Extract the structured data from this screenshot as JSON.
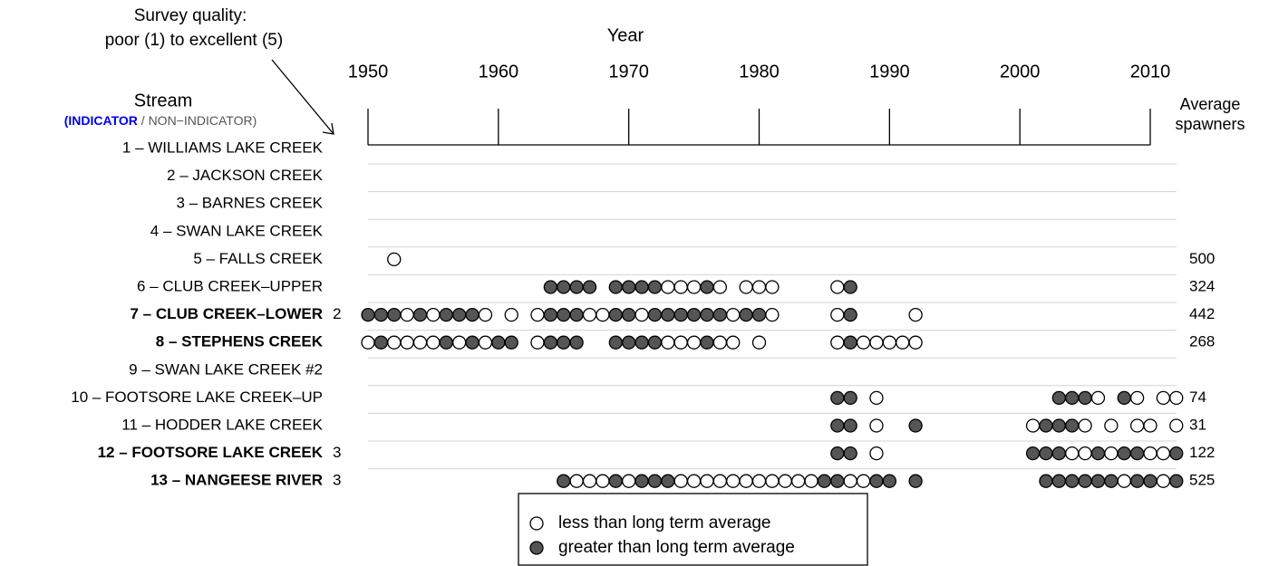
{
  "chart_data": {
    "type": "dot",
    "x_label": "Year",
    "annotation": [
      "Survey quality:",
      "poor (1) to excellent (5)"
    ],
    "stream_header": "Stream",
    "indicator_label": "(INDICATOR",
    "non_indicator_label": "/ NON−INDICATOR)",
    "average_header": [
      "Average",
      "spawners"
    ],
    "xlim": [
      1950,
      2010
    ],
    "xticks": [
      1950,
      1960,
      1970,
      1980,
      1990,
      2000,
      2010
    ],
    "indicator_color": "#0000ee",
    "other_color": "#555555",
    "above_color": "#555555",
    "below_color": "#ffffff",
    "legend": [
      {
        "label": "less than long term average",
        "above": false
      },
      {
        "label": "greater than long term average",
        "above": true
      }
    ],
    "streams": [
      {
        "name": "1 – WILLIAMS LAKE CREEK",
        "indicator": false,
        "quality": null,
        "average": null,
        "years": [],
        "above": []
      },
      {
        "name": "2 – JACKSON CREEK",
        "indicator": false,
        "quality": null,
        "average": null,
        "years": [],
        "above": []
      },
      {
        "name": "3 – BARNES CREEK",
        "indicator": false,
        "quality": null,
        "average": null,
        "years": [],
        "above": []
      },
      {
        "name": "4 – SWAN LAKE CREEK",
        "indicator": false,
        "quality": null,
        "average": null,
        "years": [],
        "above": []
      },
      {
        "name": "5 – FALLS CREEK",
        "indicator": false,
        "quality": null,
        "average": 500,
        "years": [
          1952
        ],
        "above": [
          false
        ]
      },
      {
        "name": "6 – CLUB CREEK–UPPER",
        "indicator": false,
        "quality": null,
        "average": 324,
        "years": [
          1964,
          1965,
          1966,
          1967,
          1969,
          1970,
          1971,
          1972,
          1973,
          1974,
          1975,
          1976,
          1977,
          1979,
          1980,
          1981,
          1986,
          1987
        ],
        "above": [
          true,
          true,
          true,
          true,
          true,
          true,
          true,
          true,
          false,
          false,
          false,
          true,
          false,
          false,
          false,
          false,
          false,
          true
        ]
      },
      {
        "name": "7 – CLUB CREEK–LOWER",
        "indicator": true,
        "quality": 2,
        "average": 442,
        "years": [
          1950,
          1951,
          1952,
          1953,
          1954,
          1955,
          1956,
          1957,
          1958,
          1959,
          1961,
          1963,
          1964,
          1965,
          1966,
          1967,
          1968,
          1969,
          1970,
          1971,
          1972,
          1973,
          1974,
          1975,
          1976,
          1977,
          1978,
          1979,
          1980,
          1981,
          1986,
          1987,
          1992
        ],
        "above": [
          true,
          true,
          true,
          false,
          true,
          false,
          true,
          true,
          true,
          false,
          false,
          false,
          true,
          true,
          true,
          false,
          false,
          true,
          true,
          false,
          true,
          true,
          true,
          true,
          true,
          true,
          false,
          true,
          true,
          false,
          false,
          true,
          false
        ]
      },
      {
        "name": "8 – STEPHENS CREEK",
        "indicator": true,
        "quality": null,
        "average": 268,
        "years": [
          1950,
          1951,
          1952,
          1953,
          1954,
          1955,
          1956,
          1957,
          1958,
          1959,
          1960,
          1961,
          1963,
          1964,
          1965,
          1966,
          1969,
          1970,
          1971,
          1972,
          1973,
          1974,
          1975,
          1976,
          1977,
          1978,
          1980,
          1986,
          1987,
          1988,
          1989,
          1990,
          1991,
          1992
        ],
        "above": [
          false,
          true,
          false,
          false,
          false,
          false,
          true,
          false,
          true,
          false,
          true,
          true,
          false,
          true,
          true,
          true,
          true,
          true,
          true,
          true,
          false,
          false,
          false,
          true,
          false,
          false,
          false,
          false,
          true,
          false,
          false,
          false,
          false,
          false
        ]
      },
      {
        "name": "9 – SWAN LAKE CREEK #2",
        "indicator": false,
        "quality": null,
        "average": null,
        "years": [],
        "above": []
      },
      {
        "name": "10 – FOOTSORE LAKE CREEK–UP",
        "indicator": false,
        "quality": null,
        "average": 74,
        "years": [
          1986,
          1987,
          1989,
          2003,
          2004,
          2005,
          2006,
          2008,
          2009,
          2011,
          2012
        ],
        "above": [
          true,
          true,
          false,
          true,
          true,
          true,
          false,
          true,
          false,
          false,
          false
        ]
      },
      {
        "name": "11 – HODDER LAKE CREEK",
        "indicator": false,
        "quality": null,
        "average": 31,
        "years": [
          1986,
          1987,
          1989,
          1992,
          2001,
          2002,
          2003,
          2004,
          2005,
          2007,
          2009,
          2010,
          2012
        ],
        "above": [
          true,
          true,
          false,
          true,
          false,
          true,
          true,
          true,
          false,
          false,
          false,
          false,
          false
        ]
      },
      {
        "name": "12 – FOOTSORE LAKE CREEK",
        "indicator": true,
        "quality": 3,
        "average": 122,
        "years": [
          1986,
          1987,
          1989,
          2001,
          2002,
          2003,
          2004,
          2005,
          2006,
          2007,
          2008,
          2009,
          2010,
          2011,
          2012
        ],
        "above": [
          true,
          true,
          false,
          true,
          true,
          true,
          false,
          false,
          true,
          false,
          true,
          true,
          false,
          false,
          true
        ]
      },
      {
        "name": "13 – NANGEESE RIVER",
        "indicator": true,
        "quality": 3,
        "average": 525,
        "years": [
          1965,
          1966,
          1967,
          1968,
          1969,
          1970,
          1971,
          1972,
          1973,
          1974,
          1975,
          1976,
          1977,
          1978,
          1979,
          1980,
          1981,
          1982,
          1983,
          1984,
          1985,
          1986,
          1987,
          1988,
          1989,
          1990,
          1992,
          2002,
          2003,
          2004,
          2005,
          2006,
          2007,
          2008,
          2009,
          2010,
          2011,
          2012
        ],
        "above": [
          true,
          false,
          false,
          false,
          true,
          false,
          true,
          true,
          true,
          false,
          false,
          false,
          false,
          false,
          false,
          false,
          false,
          false,
          false,
          false,
          true,
          true,
          false,
          false,
          true,
          true,
          true,
          true,
          true,
          true,
          true,
          true,
          true,
          false,
          true,
          true,
          false,
          true
        ]
      }
    ]
  }
}
